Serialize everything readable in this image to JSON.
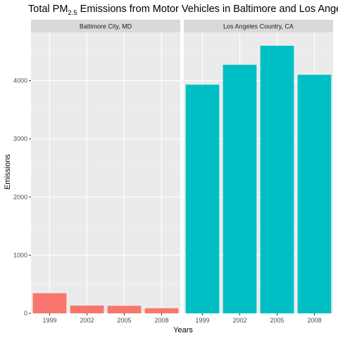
{
  "chart_data": {
    "type": "bar",
    "title": {
      "prefix": "Total PM",
      "subscript": "2.5",
      "suffix": " Emissions from Motor Vehicles in Baltimore and Los Angeles"
    },
    "xlabel": "Years",
    "ylabel": "Emissions",
    "categories": [
      "1999",
      "2002",
      "2005",
      "2008"
    ],
    "ylim": [
      0,
      4830
    ],
    "yticks": [
      0,
      1000,
      2000,
      3000,
      4000
    ],
    "grid": true,
    "legend": "none",
    "facets": [
      {
        "name": "Baltimore City, MD",
        "color": "#F8766D",
        "values": [
          346,
          134,
          130,
          88
        ]
      },
      {
        "name": "Los Angeles Country, CA",
        "color": "#00BFC4",
        "values": [
          3931,
          4274,
          4601,
          4101
        ]
      }
    ]
  }
}
